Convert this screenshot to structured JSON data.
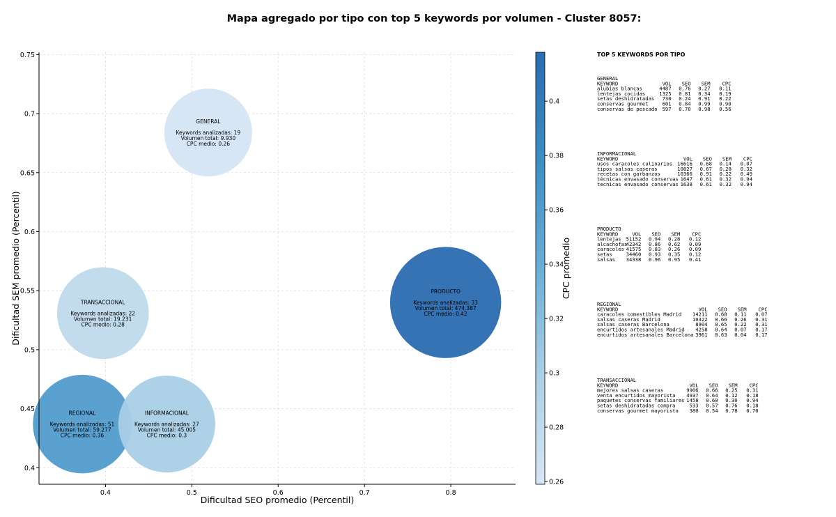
{
  "chart_data": {
    "type": "bubble",
    "title": "Mapa agregado por tipo con top 5 keywords por volumen - Cluster 8057:",
    "xlabel": "Dificultad SEO promedio (Percentil)",
    "ylabel": "Dificultad SEM promedio (Percentil)",
    "colorbar_label": "CPC promedio",
    "xlim": [
      0.323,
      0.875
    ],
    "xticks": [
      0.4,
      0.5,
      0.6,
      0.7,
      0.8
    ],
    "ylim": [
      0.386,
      0.752
    ],
    "yticks": [
      0.4,
      0.45,
      0.5,
      0.55,
      0.6,
      0.65,
      0.7,
      0.75
    ],
    "clim": [
      0.259,
      0.418
    ],
    "cticks": [
      0.26,
      0.28,
      0.3,
      0.32,
      0.34,
      0.36,
      0.38,
      0.4
    ],
    "colormap": [
      "#d6e6f4",
      "#abd0e6",
      "#6aaed6",
      "#3d8dc4",
      "#2b6cb0"
    ],
    "grid": true,
    "annotation_labels": {
      "keywords": "Keywords analizadas:",
      "volume": "Volumen total:",
      "cpc": "CPC medio:"
    },
    "points": [
      {
        "name": "GENERAL",
        "x": 0.519,
        "y": 0.684,
        "keywords": 19,
        "volume": 9930,
        "volume_label": "9.930",
        "cpc": 0.26
      },
      {
        "name": "TRANSACCIONAL",
        "x": 0.397,
        "y": 0.531,
        "keywords": 22,
        "volume": 19231,
        "volume_label": "19.231",
        "cpc": 0.28
      },
      {
        "name": "REGIONAL",
        "x": 0.373,
        "y": 0.437,
        "keywords": 51,
        "volume": 59277,
        "volume_label": "59.277",
        "cpc": 0.36
      },
      {
        "name": "INFORMACIONAL",
        "x": 0.471,
        "y": 0.437,
        "keywords": 27,
        "volume": 45005,
        "volume_label": "45.005",
        "cpc": 0.3
      },
      {
        "name": "PRODUCTO",
        "x": 0.794,
        "y": 0.54,
        "keywords": 33,
        "volume": 474387,
        "volume_label": "474.387",
        "cpc": 0.42
      }
    ]
  },
  "keyword_panel": {
    "title": "TOP 5 KEYWORDS POR TIPO",
    "headers": [
      "KEYWORD",
      "VOL",
      "SEO",
      "SEM",
      "CPC"
    ],
    "groups": [
      {
        "name": "GENERAL",
        "rows": [
          [
            "alubias blancas",
            "4487",
            "0.76",
            "0.27",
            "0.11"
          ],
          [
            "lentejas cocidas",
            "1325",
            "0.81",
            "0.34",
            "0.19"
          ],
          [
            "setas deshidratadas",
            "730",
            "0.24",
            "0.91",
            "0.22"
          ],
          [
            "conservas gourmet",
            "601",
            "0.84",
            "0.99",
            "0.90"
          ],
          [
            "conservas de pescado",
            "597",
            "0.70",
            "0.98",
            "0.56"
          ]
        ]
      },
      {
        "name": "INFORMACIONAL",
        "rows": [
          [
            "usos caracoles culinarios",
            "16616",
            "0.68",
            "0.14",
            "0.07"
          ],
          [
            "tipos salsas caseras",
            "10827",
            "0.67",
            "0.28",
            "0.32"
          ],
          [
            "recetas con garbanzos",
            "10366",
            "0.91",
            "0.22",
            "0.49"
          ],
          [
            "técnicas envasado conservas",
            "1647",
            "0.61",
            "0.32",
            "0.94"
          ],
          [
            "tecnicas envasado conservas",
            "1638",
            "0.61",
            "0.32",
            "0.94"
          ]
        ]
      },
      {
        "name": "PRODUCTO",
        "rows": [
          [
            "lentejas",
            "51152",
            "0.94",
            "0.28",
            "0.12"
          ],
          [
            "alcachofas",
            "42342",
            "0.86",
            "0.62",
            "0.09"
          ],
          [
            "caracoles",
            "41575",
            "0.83",
            "0.26",
            "0.09"
          ],
          [
            "setas",
            "34460",
            "0.93",
            "0.35",
            "0.12"
          ],
          [
            "salsas",
            "34338",
            "0.96",
            "0.95",
            "0.41"
          ]
        ]
      },
      {
        "name": "REGIONAL",
        "rows": [
          [
            "caracoles comestibles Madrid",
            "14211",
            "0.68",
            "0.11",
            "0.07"
          ],
          [
            "salsas caseras Madrid",
            "10322",
            "0.66",
            "0.26",
            "0.31"
          ],
          [
            "salsas caseras Barcelona",
            "8904",
            "0.65",
            "0.22",
            "0.31"
          ],
          [
            "encurtidos artesanales Madrid",
            "4258",
            "0.64",
            "0.07",
            "0.17"
          ],
          [
            "encurtidos artesanales Barcelona",
            "3961",
            "0.63",
            "0.04",
            "0.17"
          ]
        ]
      },
      {
        "name": "TRANSACCIONAL",
        "rows": [
          [
            "mejores salsas caseras",
            "9906",
            "0.66",
            "0.25",
            "0.31"
          ],
          [
            "venta encurtidos mayorista",
            "4937",
            "0.64",
            "0.12",
            "0.18"
          ],
          [
            "paquetes conservas familiares",
            "1458",
            "0.60",
            "0.30",
            "0.94"
          ],
          [
            "setas deshidratadas compra",
            "533",
            "0.57",
            "0.76",
            "0.18"
          ],
          [
            "conservas gourmet mayorista",
            "380",
            "0.54",
            "0.78",
            "0.70"
          ]
        ]
      }
    ]
  }
}
